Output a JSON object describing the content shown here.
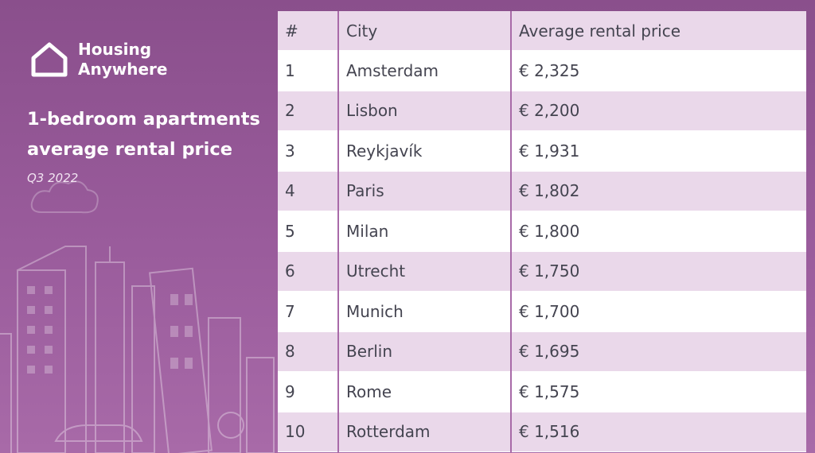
{
  "brand": {
    "name_line1": "Housing",
    "name_line2": "Anywhere"
  },
  "title": "1-bedroom apartments average rental price",
  "period": "Q3 2022",
  "colors": {
    "background": "#9a5c9c",
    "row_alt": "#ead8ea",
    "row": "#ffffff",
    "divider": "#a86aa8",
    "text": "#444450"
  },
  "chart_data": {
    "type": "table",
    "columns": [
      "#",
      "City",
      "Average rental price"
    ],
    "rows": [
      {
        "rank": "1",
        "city": "Amsterdam",
        "price": "€ 2,325"
      },
      {
        "rank": "2",
        "city": "Lisbon",
        "price": "€ 2,200"
      },
      {
        "rank": "3",
        "city": "Reykjavík",
        "price": "€ 1,931"
      },
      {
        "rank": "4",
        "city": "Paris",
        "price": "€ 1,802"
      },
      {
        "rank": "5",
        "city": "Milan",
        "price": "€ 1,800"
      },
      {
        "rank": "6",
        "city": "Utrecht",
        "price": "€ 1,750"
      },
      {
        "rank": "7",
        "city": "Munich",
        "price": "€ 1,700"
      },
      {
        "rank": "8",
        "city": "Berlin",
        "price": "€ 1,695"
      },
      {
        "rank": "9",
        "city": "Rome",
        "price": "€ 1,575"
      },
      {
        "rank": "10",
        "city": "Rotterdam",
        "price": "€ 1,516"
      }
    ]
  }
}
